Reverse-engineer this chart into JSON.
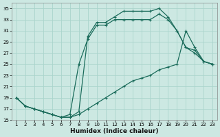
{
  "xlabel": "Humidex (Indice chaleur)",
  "bg_color": "#cce8e2",
  "grid_color": "#aad4cc",
  "line_color": "#1a6b5a",
  "xlim": [
    0.5,
    23.5
  ],
  "ylim": [
    15,
    36
  ],
  "xticks": [
    1,
    2,
    3,
    4,
    5,
    6,
    7,
    8,
    9,
    10,
    11,
    12,
    13,
    14,
    15,
    16,
    17,
    18,
    19,
    20,
    21,
    22,
    23
  ],
  "yticks": [
    15,
    17,
    19,
    21,
    23,
    25,
    27,
    29,
    31,
    33,
    35
  ],
  "line_upper": {
    "x": [
      1,
      2,
      3,
      4,
      5,
      6,
      7,
      8,
      9,
      10,
      11,
      12,
      13,
      14,
      15,
      16,
      17,
      18,
      19,
      20,
      21,
      22,
      23
    ],
    "y": [
      19,
      17.5,
      17,
      16.5,
      16,
      15.5,
      15.5,
      16.5,
      30,
      32.5,
      32.5,
      33.5,
      34.5,
      34.5,
      34.5,
      34.5,
      35,
      33.5,
      31,
      28,
      27.5,
      25.5,
      25
    ]
  },
  "line_mid": {
    "x": [
      1,
      2,
      3,
      4,
      5,
      6,
      7,
      8,
      9,
      10,
      11,
      12,
      13,
      14,
      15,
      16,
      17,
      18,
      19,
      20,
      21,
      22,
      23
    ],
    "y": [
      19,
      17.5,
      17,
      16.5,
      16,
      15.5,
      16,
      25,
      29.5,
      32,
      32,
      33,
      33,
      33,
      33,
      33,
      34,
      33,
      31,
      28,
      27,
      25.5,
      25
    ]
  },
  "line_lower": {
    "x": [
      1,
      2,
      3,
      4,
      5,
      6,
      7,
      8,
      9,
      10,
      11,
      12,
      13,
      14,
      15,
      16,
      17,
      18,
      19,
      20,
      21,
      22,
      23
    ],
    "y": [
      19,
      17.5,
      17,
      16.5,
      16,
      15.5,
      15.5,
      16,
      17,
      18,
      19,
      20,
      21,
      22,
      22.5,
      23,
      24,
      24.5,
      25,
      31,
      28,
      25.5,
      25
    ]
  },
  "marker_size": 3.5,
  "line_width": 0.9
}
